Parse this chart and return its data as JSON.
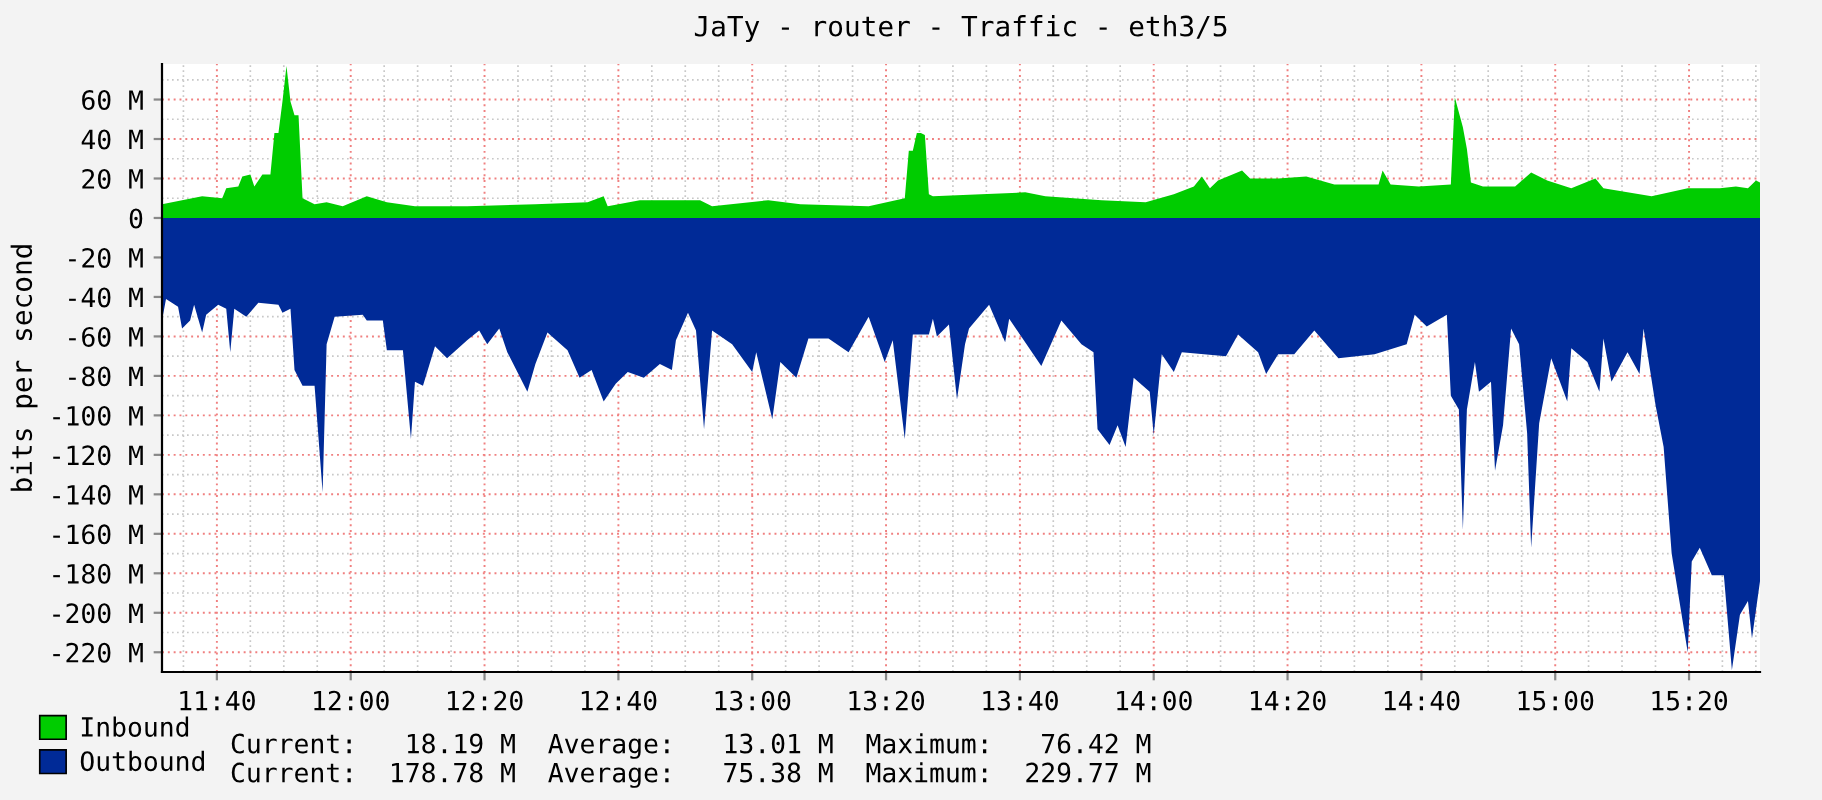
{
  "chart_data": {
    "type": "area",
    "title": "JaTy - router - Traffic - eth3/5",
    "ylabel": "bits per second",
    "xlim": [
      11.53,
      15.51
    ],
    "xticks": [
      {
        "value": 11.6667,
        "label": "11:40"
      },
      {
        "value": 12,
        "label": "12:00"
      },
      {
        "value": 12.3333,
        "label": "12:20"
      },
      {
        "value": 12.6667,
        "label": "12:40"
      },
      {
        "value": 13,
        "label": "13:00"
      },
      {
        "value": 13.3333,
        "label": "13:20"
      },
      {
        "value": 13.6667,
        "label": "13:40"
      },
      {
        "value": 14,
        "label": "14:00"
      },
      {
        "value": 14.3333,
        "label": "14:20"
      },
      {
        "value": 14.6667,
        "label": "14:40"
      },
      {
        "value": 15,
        "label": "15:00"
      },
      {
        "value": 15.3333,
        "label": "15:20"
      }
    ],
    "ylim": [
      -230,
      78
    ],
    "yticks": [
      {
        "value": 60,
        "label": "60 M"
      },
      {
        "value": 40,
        "label": "40 M"
      },
      {
        "value": 20,
        "label": "20 M"
      },
      0,
      {
        "value": -20,
        "label": "-20 M"
      },
      {
        "value": -40,
        "label": "-40 M"
      },
      {
        "value": -60,
        "label": "-60 M"
      },
      {
        "value": -80,
        "label": "-80 M"
      },
      {
        "value": -100,
        "label": "-100 M"
      },
      {
        "value": -120,
        "label": "-120 M"
      },
      {
        "value": -140,
        "label": "-140 M"
      },
      {
        "value": -160,
        "label": "-160 M"
      },
      {
        "value": -180,
        "label": "-180 M"
      },
      {
        "value": -200,
        "label": "-200 M"
      },
      {
        "value": -220,
        "label": "-220 M"
      }
    ],
    "grid": true,
    "legend": "bottom left",
    "annotations": [
      "Current:   18.19 M  Average:   13.01 M  Maximum:   76.42 M",
      "Current:  178.78 M  Average:   75.38 M  Maximum:  229.77 M"
    ],
    "series": [
      {
        "name": "Inbound",
        "color": "#00cc00",
        "x": [
          11.53,
          11.63,
          11.68,
          11.69,
          11.72,
          11.73,
          11.75,
          11.76,
          11.78,
          11.8,
          11.81,
          11.82,
          11.83,
          11.84,
          11.85,
          11.86,
          11.87,
          11.88,
          11.91,
          11.94,
          11.98,
          12.04,
          12.09,
          12.16,
          12.29,
          12.46,
          12.59,
          12.63,
          12.64,
          12.72,
          12.87,
          12.9,
          13.04,
          13.12,
          13.29,
          13.38,
          13.39,
          13.4,
          13.41,
          13.42,
          13.43,
          13.44,
          13.45,
          13.57,
          13.68,
          13.73,
          13.87,
          13.98,
          14.05,
          14.1,
          14.12,
          14.14,
          14.16,
          14.22,
          14.24,
          14.31,
          14.38,
          14.45,
          14.56,
          14.57,
          14.59,
          14.66,
          14.74,
          14.75,
          14.77,
          14.78,
          14.79,
          14.82,
          14.9,
          14.94,
          14.98,
          15.04,
          15.1,
          15.12,
          15.24,
          15.33,
          15.41,
          15.45,
          15.48,
          15.5,
          15.51
        ],
        "values": [
          7,
          11,
          10,
          15,
          16,
          21,
          22,
          16,
          22,
          22,
          43,
          43,
          59,
          77,
          59,
          52,
          52,
          10,
          7,
          8,
          6,
          11,
          8,
          6,
          6,
          7,
          8,
          11,
          6,
          9,
          9,
          6,
          9,
          7,
          6,
          10,
          34,
          34,
          43,
          43,
          42,
          12,
          11,
          12,
          13,
          11,
          9,
          8,
          12,
          16,
          21,
          15,
          19,
          24,
          20,
          20,
          21,
          17,
          17,
          24,
          17,
          16,
          17,
          61,
          46,
          35,
          18,
          16,
          16,
          23,
          19,
          15,
          20,
          15,
          11,
          15,
          15,
          16,
          15,
          19,
          18
        ]
      },
      {
        "name": "Outbound",
        "color": "#002a97",
        "x": [
          11.53,
          11.54,
          11.57,
          11.58,
          11.6,
          11.61,
          11.63,
          11.64,
          11.67,
          11.69,
          11.7,
          11.71,
          11.74,
          11.77,
          11.82,
          11.83,
          11.85,
          11.86,
          11.88,
          11.91,
          11.93,
          11.94,
          11.96,
          12.03,
          12.04,
          12.08,
          12.09,
          12.13,
          12.15,
          12.16,
          12.18,
          12.21,
          12.24,
          12.29,
          12.32,
          12.34,
          12.37,
          12.39,
          12.44,
          12.46,
          12.49,
          12.54,
          12.57,
          12.6,
          12.63,
          12.66,
          12.69,
          12.73,
          12.77,
          12.8,
          12.81,
          12.84,
          12.86,
          12.88,
          12.9,
          12.95,
          13.0,
          13.01,
          13.05,
          13.07,
          13.11,
          13.14,
          13.19,
          13.24,
          13.29,
          13.33,
          13.35,
          13.38,
          13.4,
          13.44,
          13.45,
          13.46,
          13.49,
          13.51,
          13.53,
          13.54,
          13.59,
          13.63,
          13.64,
          13.72,
          13.77,
          13.82,
          13.85,
          13.86,
          13.89,
          13.91,
          13.93,
          13.95,
          13.99,
          14.0,
          14.02,
          14.05,
          14.07,
          14.18,
          14.21,
          14.26,
          14.28,
          14.31,
          14.35,
          14.4,
          14.46,
          14.55,
          14.63,
          14.65,
          14.68,
          14.73,
          14.74,
          14.76,
          14.77,
          14.78,
          14.8,
          14.81,
          14.84,
          14.85,
          14.87,
          14.89,
          14.91,
          14.93,
          14.94,
          14.96,
          14.99,
          15.03,
          15.04,
          15.08,
          15.11,
          15.12,
          15.14,
          15.18,
          15.21,
          15.22,
          15.25,
          15.27,
          15.29,
          15.33,
          15.34,
          15.36,
          15.39,
          15.42,
          15.44,
          15.46,
          15.48,
          15.49,
          15.51
        ],
        "values": [
          -52,
          -41,
          -45,
          -56,
          -52,
          -44,
          -58,
          -49,
          -44,
          -46,
          -68,
          -46,
          -50,
          -43,
          -44,
          -48,
          -46,
          -77,
          -85,
          -85,
          -139,
          -64,
          -50,
          -49,
          -52,
          -52,
          -67,
          -67,
          -112,
          -83,
          -85,
          -65,
          -71,
          -62,
          -57,
          -64,
          -56,
          -68,
          -88,
          -74,
          -58,
          -67,
          -81,
          -77,
          -93,
          -84,
          -78,
          -81,
          -74,
          -77,
          -62,
          -48,
          -57,
          -107,
          -57,
          -64,
          -78,
          -68,
          -102,
          -73,
          -81,
          -61,
          -61,
          -68,
          -50,
          -73,
          -62,
          -112,
          -59,
          -59,
          -51,
          -60,
          -54,
          -92,
          -64,
          -56,
          -44,
          -63,
          -51,
          -75,
          -52,
          -64,
          -68,
          -107,
          -115,
          -105,
          -116,
          -81,
          -88,
          -110,
          -69,
          -78,
          -68,
          -70,
          -59,
          -68,
          -79,
          -69,
          -69,
          -57,
          -71,
          -69,
          -64,
          -49,
          -55,
          -49,
          -90,
          -97,
          -158,
          -97,
          -73,
          -88,
          -83,
          -128,
          -105,
          -56,
          -64,
          -109,
          -167,
          -104,
          -71,
          -93,
          -66,
          -73,
          -88,
          -61,
          -83,
          -68,
          -79,
          -56,
          -95,
          -116,
          -170,
          -220,
          -174,
          -167,
          -181,
          -181,
          -229,
          -201,
          -194,
          -213,
          -184
        ]
      }
    ]
  }
}
